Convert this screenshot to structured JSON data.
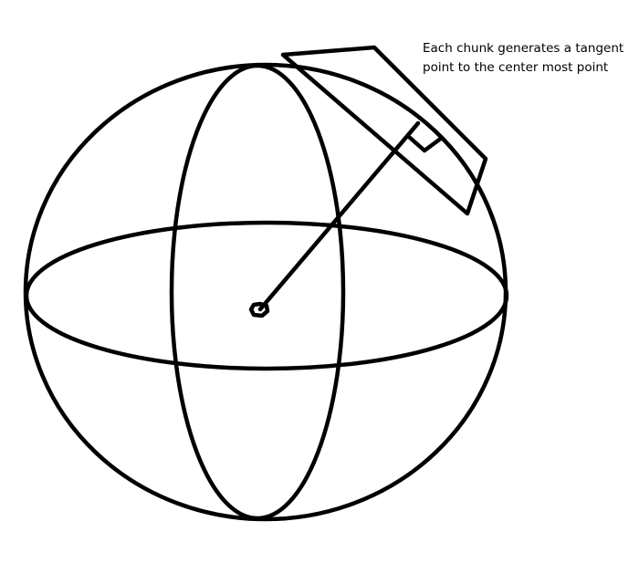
{
  "annotation": {
    "line1": "Each chunk generates a tangent",
    "line2": "point to the center most point"
  },
  "ink_color": "#000000",
  "background_color": "#ffffff"
}
